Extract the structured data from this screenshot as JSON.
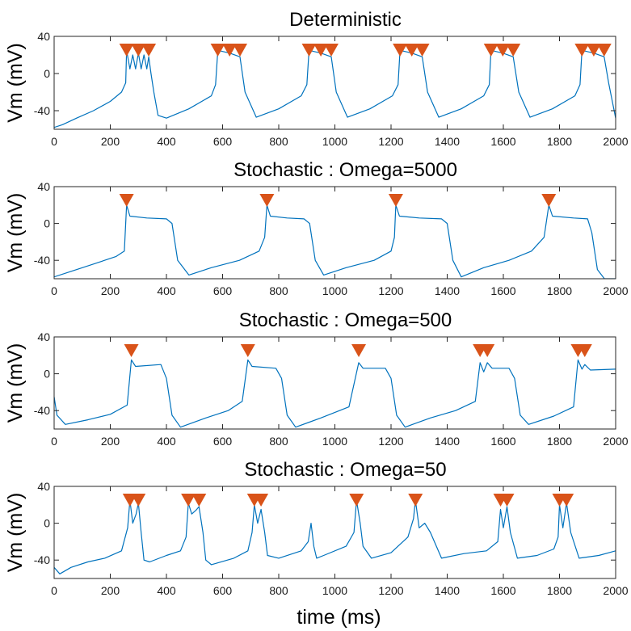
{
  "colors": {
    "trace": "#0072BD",
    "marker": "#D95319",
    "axis": "#262626"
  },
  "chart_data": [
    {
      "type": "line",
      "title": "Deterministic",
      "ylabel": "Vm (mV)",
      "xlabel": "",
      "xlim": [
        0,
        2000
      ],
      "ylim": [
        -60,
        40
      ],
      "xticks": [
        "0",
        "200",
        "400",
        "600",
        "800",
        "1000",
        "1200",
        "1400",
        "1600",
        "1800",
        "2000"
      ],
      "yticks": [
        "-40",
        "0",
        "40"
      ],
      "marker": "inverted-triangle",
      "spike_times": [
        258,
        300,
        337,
        583,
        625,
        662,
        908,
        950,
        987,
        1232,
        1274,
        1311,
        1556,
        1598,
        1635,
        1880,
        1922,
        1959
      ],
      "series": [
        {
          "values_x": [
            0,
            30,
            80,
            140,
            200,
            240,
            255,
            258,
            270,
            280,
            290,
            300,
            310,
            320,
            330,
            337,
            345,
            355,
            370,
            400,
            480,
            560,
            575,
            583,
            625,
            662,
            680,
            720,
            800,
            880,
            900,
            908,
            950,
            987,
            1005,
            1045,
            1125,
            1205,
            1225,
            1232,
            1274,
            1311,
            1330,
            1370,
            1450,
            1530,
            1550,
            1556,
            1598,
            1635,
            1655,
            1695,
            1775,
            1855,
            1873,
            1880,
            1922,
            1959,
            1975,
            2000
          ],
          "values_y": [
            -58,
            -55,
            -48,
            -40,
            -30,
            -20,
            -10,
            25,
            5,
            20,
            5,
            22,
            5,
            20,
            5,
            18,
            0,
            -20,
            -45,
            -48,
            -38,
            -24,
            -12,
            25,
            22,
            18,
            -20,
            -47,
            -38,
            -24,
            -12,
            25,
            22,
            18,
            -20,
            -47,
            -38,
            -24,
            -12,
            25,
            22,
            18,
            -20,
            -47,
            -38,
            -24,
            -12,
            25,
            22,
            18,
            -20,
            -47,
            -38,
            -24,
            -12,
            25,
            22,
            18,
            -10,
            -48
          ]
        }
      ]
    },
    {
      "type": "line",
      "title": "Stochastic : Omega=5000",
      "ylabel": "Vm (mV)",
      "xlabel": "",
      "xlim": [
        0,
        2000
      ],
      "ylim": [
        -60,
        40
      ],
      "xticks": [
        "0",
        "200",
        "400",
        "600",
        "800",
        "1000",
        "1200",
        "1400",
        "1600",
        "1800",
        "2000"
      ],
      "yticks": [
        "-40",
        "0",
        "40"
      ],
      "marker": "inverted-triangle",
      "spike_times": [
        258,
        758,
        1217,
        1762
      ],
      "series": [
        {
          "values_x": [
            0,
            60,
            140,
            220,
            250,
            258,
            270,
            330,
            400,
            420,
            440,
            480,
            560,
            660,
            730,
            750,
            758,
            770,
            830,
            890,
            910,
            930,
            960,
            1040,
            1140,
            1200,
            1212,
            1217,
            1230,
            1300,
            1380,
            1400,
            1420,
            1450,
            1530,
            1620,
            1700,
            1745,
            1762,
            1775,
            1850,
            1900,
            1915,
            1935,
            1960,
            2000
          ],
          "values_y": [
            -58,
            -52,
            -44,
            -36,
            -30,
            20,
            8,
            6,
            5,
            0,
            -40,
            -56,
            -48,
            -40,
            -30,
            -15,
            20,
            8,
            6,
            5,
            0,
            -40,
            -56,
            -48,
            -40,
            -30,
            -15,
            20,
            8,
            6,
            5,
            0,
            -40,
            -58,
            -48,
            -40,
            -30,
            -15,
            20,
            8,
            6,
            5,
            -10,
            -50,
            -60,
            -60
          ]
        }
      ]
    },
    {
      "type": "line",
      "title": "Stochastic : Omega=500",
      "ylabel": "Vm (mV)",
      "xlabel": "",
      "xlim": [
        0,
        2000
      ],
      "ylim": [
        -60,
        40
      ],
      "xticks": [
        "0",
        "200",
        "400",
        "600",
        "800",
        "1000",
        "1200",
        "1400",
        "1600",
        "1800",
        "2000"
      ],
      "yticks": [
        "-40",
        "0",
        "40"
      ],
      "marker": "inverted-triangle",
      "spike_times": [
        275,
        690,
        1085,
        1517,
        1543,
        1866,
        1890
      ],
      "series": [
        {
          "values_x": [
            0,
            10,
            40,
            120,
            200,
            260,
            275,
            290,
            380,
            400,
            420,
            450,
            540,
            620,
            670,
            690,
            705,
            790,
            810,
            830,
            860,
            950,
            1050,
            1085,
            1100,
            1180,
            1200,
            1220,
            1250,
            1340,
            1430,
            1500,
            1517,
            1530,
            1543,
            1560,
            1620,
            1640,
            1660,
            1690,
            1780,
            1850,
            1866,
            1880,
            1890,
            1910,
            2000
          ],
          "values_y": [
            -25,
            -45,
            -55,
            -50,
            -44,
            -34,
            15,
            8,
            10,
            -5,
            -45,
            -58,
            -48,
            -40,
            -30,
            15,
            8,
            6,
            -5,
            -45,
            -58,
            -48,
            -36,
            12,
            6,
            6,
            -5,
            -45,
            -58,
            -48,
            -40,
            -30,
            12,
            2,
            12,
            6,
            6,
            -5,
            -45,
            -55,
            -46,
            -36,
            15,
            5,
            10,
            4,
            5
          ]
        }
      ]
    },
    {
      "type": "line",
      "title": "Stochastic : Omega=50",
      "ylabel": "Vm (mV)",
      "xlabel": "time (ms)",
      "xlim": [
        0,
        2000
      ],
      "ylim": [
        -60,
        40
      ],
      "xticks": [
        "0",
        "200",
        "400",
        "600",
        "800",
        "1000",
        "1200",
        "1400",
        "1600",
        "1800",
        "2000"
      ],
      "yticks": [
        "-40",
        "0",
        "40"
      ],
      "marker": "inverted-triangle",
      "spike_times": [
        270,
        300,
        478,
        516,
        713,
        737,
        1077,
        1287,
        1590,
        1613,
        1800,
        1825
      ],
      "series": [
        {
          "values_x": [
            0,
            20,
            60,
            120,
            180,
            240,
            262,
            270,
            280,
            292,
            300,
            310,
            320,
            340,
            400,
            450,
            470,
            478,
            490,
            505,
            516,
            530,
            540,
            560,
            640,
            690,
            705,
            713,
            725,
            737,
            750,
            760,
            800,
            880,
            905,
            915,
            925,
            935,
            960,
            1040,
            1068,
            1077,
            1090,
            1100,
            1130,
            1200,
            1260,
            1280,
            1287,
            1300,
            1320,
            1340,
            1380,
            1460,
            1540,
            1580,
            1590,
            1600,
            1613,
            1625,
            1650,
            1720,
            1780,
            1795,
            1800,
            1812,
            1825,
            1840,
            1870,
            1940,
            2000
          ],
          "values_y": [
            -48,
            -55,
            -48,
            -42,
            -38,
            -30,
            -5,
            25,
            0,
            10,
            22,
            -10,
            -40,
            -42,
            -35,
            -30,
            -15,
            22,
            10,
            14,
            18,
            -10,
            -40,
            -45,
            -38,
            -30,
            -10,
            20,
            0,
            15,
            -10,
            -35,
            -38,
            -30,
            -20,
            0,
            -25,
            -38,
            -35,
            -25,
            -10,
            25,
            0,
            -25,
            -38,
            -32,
            -15,
            5,
            25,
            -5,
            0,
            -10,
            -38,
            -33,
            -30,
            -20,
            15,
            -5,
            18,
            -10,
            -38,
            -35,
            -28,
            -15,
            20,
            -5,
            22,
            -10,
            -38,
            -35,
            -30
          ]
        }
      ]
    }
  ]
}
